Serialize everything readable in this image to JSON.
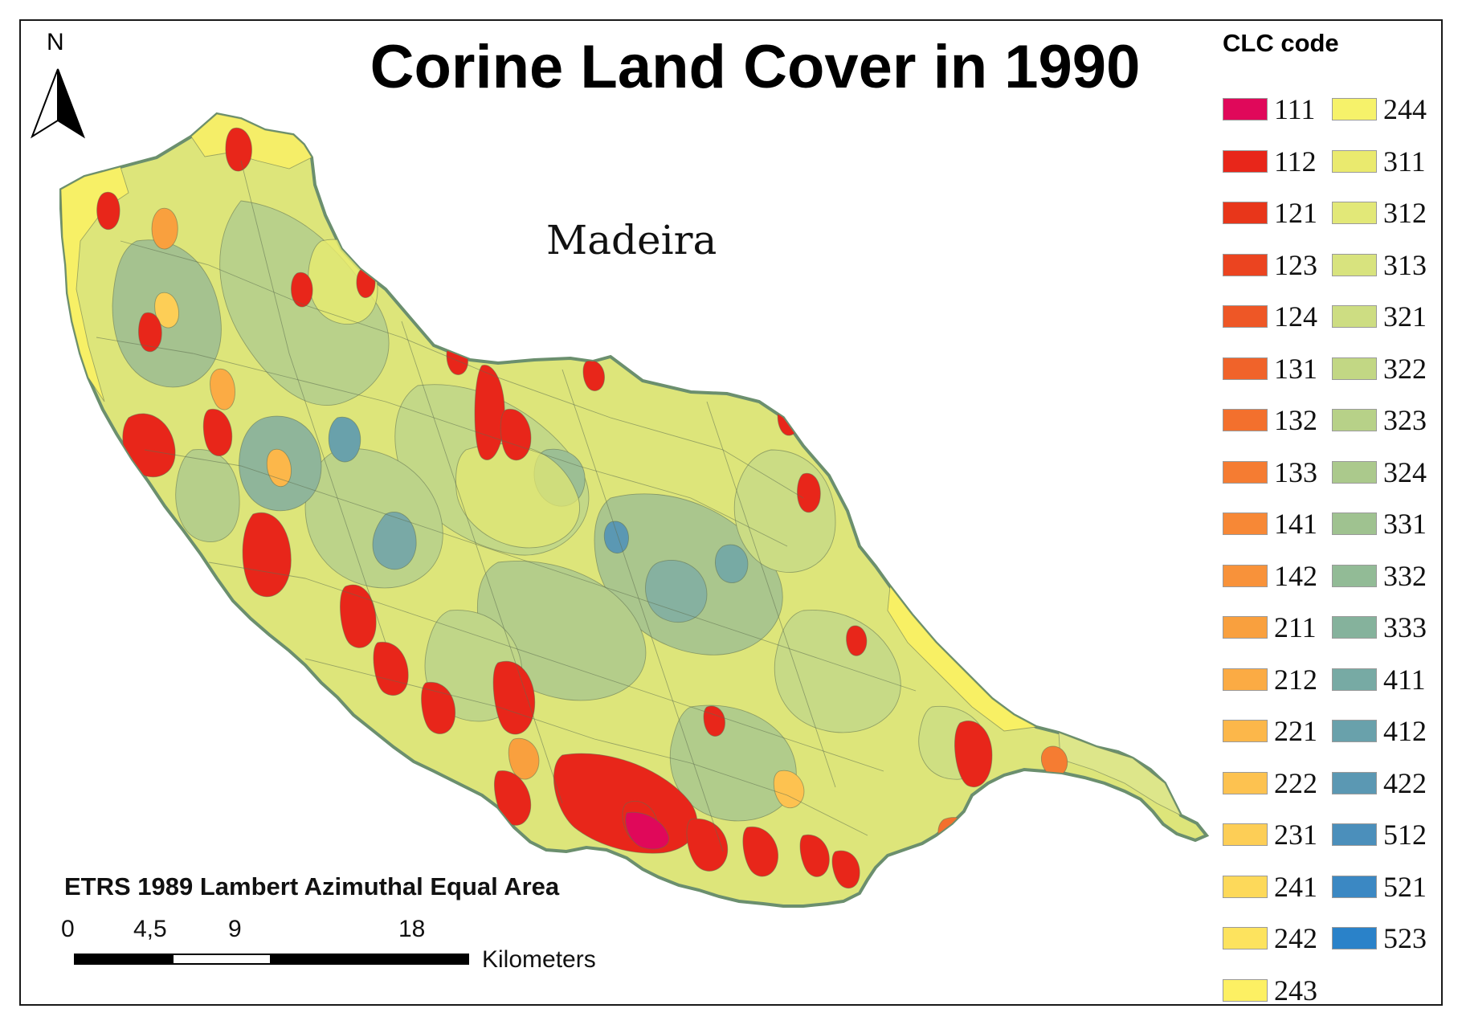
{
  "map": {
    "title": "Corine Land Cover in 1990",
    "place_label": "Madeira",
    "north_label": "N",
    "projection": "ETRS 1989 Lambert Azimuthal Equal Area",
    "scale": {
      "ticks": [
        "0",
        "4,5",
        "9",
        "18"
      ],
      "unit": "Kilometers"
    },
    "legend": {
      "title": "CLC code",
      "column1": [
        {
          "code": "111",
          "color": "#e0085a"
        },
        {
          "code": "112",
          "color": "#e8261a"
        },
        {
          "code": "121",
          "color": "#e8361a"
        },
        {
          "code": "123",
          "color": "#eb4420"
        },
        {
          "code": "124",
          "color": "#ee5726"
        },
        {
          "code": "131",
          "color": "#f0632a"
        },
        {
          "code": "132",
          "color": "#f3702d"
        },
        {
          "code": "133",
          "color": "#f57c32"
        },
        {
          "code": "141",
          "color": "#f78836"
        },
        {
          "code": "142",
          "color": "#f8923a"
        },
        {
          "code": "211",
          "color": "#f9a03e"
        },
        {
          "code": "212",
          "color": "#fbab44"
        },
        {
          "code": "221",
          "color": "#fcb74a"
        },
        {
          "code": "222",
          "color": "#fdc250"
        },
        {
          "code": "231",
          "color": "#fdce56"
        },
        {
          "code": "241",
          "color": "#fdd95a"
        },
        {
          "code": "242",
          "color": "#fde35e"
        },
        {
          "code": "243",
          "color": "#fdf063"
        }
      ],
      "column2": [
        {
          "code": "244",
          "color": "#f6f26a"
        },
        {
          "code": "311",
          "color": "#eaea6e"
        },
        {
          "code": "312",
          "color": "#e2e878"
        },
        {
          "code": "313",
          "color": "#d8e37e"
        },
        {
          "code": "321",
          "color": "#cddd82"
        },
        {
          "code": "322",
          "color": "#c2d784"
        },
        {
          "code": "323",
          "color": "#b7d188"
        },
        {
          "code": "324",
          "color": "#abc98c"
        },
        {
          "code": "331",
          "color": "#9fc290"
        },
        {
          "code": "332",
          "color": "#92bb96"
        },
        {
          "code": "333",
          "color": "#85b29c"
        },
        {
          "code": "411",
          "color": "#77aaa4"
        },
        {
          "code": "412",
          "color": "#69a1ab"
        },
        {
          "code": "422",
          "color": "#5b98b3"
        },
        {
          "code": "512",
          "color": "#4b8fbb"
        },
        {
          "code": "521",
          "color": "#3b88c3"
        },
        {
          "code": "523",
          "color": "#2a82c9"
        }
      ]
    }
  }
}
